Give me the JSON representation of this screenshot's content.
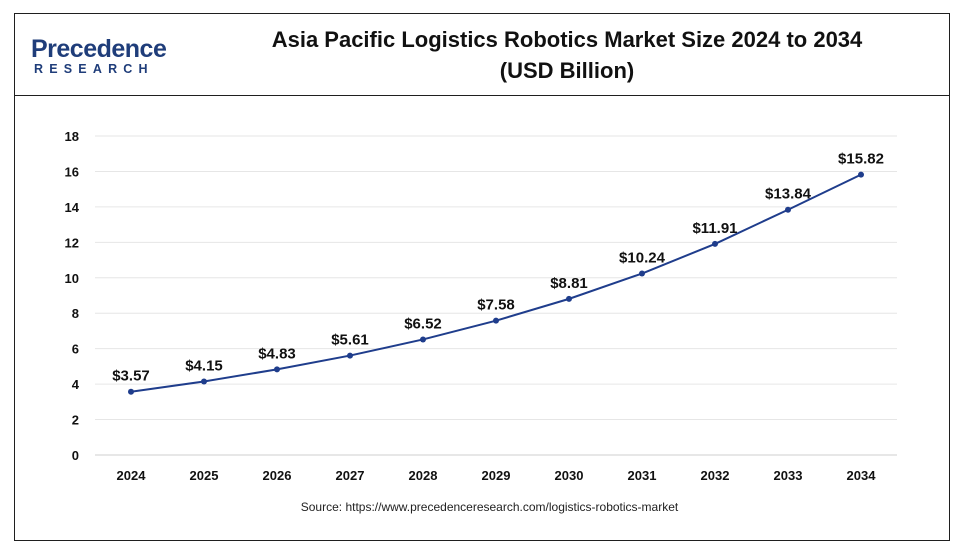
{
  "brand": {
    "name": "Precedence",
    "sub": "RESEARCH"
  },
  "title": {
    "line1": "Asia Pacific Logistics Robotics Market Size 2024 to 2034",
    "line2": "(USD Billion)"
  },
  "source": "Source: https://www.precedenceresearch.com/logistics-robotics-market",
  "colors": {
    "line": "#1f3d8c",
    "grid": "#e6e6e6",
    "text": "#111111",
    "brand": "#1f3d7a"
  },
  "chart_data": {
    "type": "line",
    "categories": [
      "2024",
      "2025",
      "2026",
      "2027",
      "2028",
      "2029",
      "2030",
      "2031",
      "2032",
      "2033",
      "2034"
    ],
    "series": [
      {
        "values": [
          3.57,
          4.15,
          4.83,
          5.61,
          6.52,
          7.58,
          8.81,
          10.24,
          11.91,
          13.84,
          15.82
        ],
        "labels": [
          "$3.57",
          "$4.15",
          "$4.83",
          "$5.61",
          "$6.52",
          "$7.58",
          "$8.81",
          "$10.24",
          "$11.91",
          "$13.84",
          "$15.82"
        ]
      }
    ],
    "yticks": [
      "0",
      "2",
      "4",
      "6",
      "8",
      "10",
      "12",
      "14",
      "16",
      "18"
    ],
    "ylim": [
      0,
      18
    ],
    "grid": true,
    "legend": "none"
  }
}
